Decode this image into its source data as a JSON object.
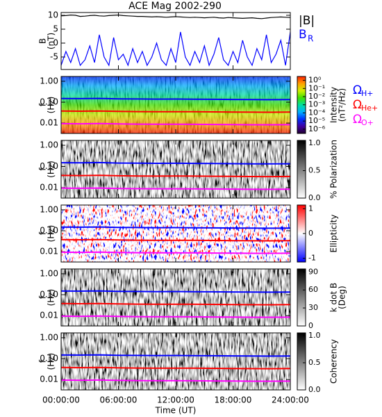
{
  "chart_data": [
    {
      "type": "line",
      "title": "ACE Mag 2002-290",
      "ylabel": [
        "B",
        "(nT)"
      ],
      "x": [
        0,
        0.5,
        1,
        1.5,
        2,
        2.5,
        3,
        3.5,
        4,
        4.5,
        5,
        5.5,
        6,
        6.5,
        7,
        7.5,
        8,
        8.5,
        9,
        9.5,
        10,
        10.5,
        11,
        11.5,
        12,
        12.5,
        13,
        13.5,
        14,
        14.5,
        15,
        15.5,
        16,
        16.5,
        17,
        17.5,
        18,
        18.5,
        19,
        19.5,
        20,
        20.5,
        21,
        21.5,
        22,
        22.5,
        23,
        23.5,
        24
      ],
      "xlim": [
        0,
        24
      ],
      "ylim": [
        -9.5,
        11
      ],
      "yticks": [
        10,
        5,
        0,
        -5
      ],
      "series": [
        {
          "name": "|B|",
          "color": "#000000",
          "values": [
            9.8,
            9.9,
            10.1,
            10.0,
            9.6,
            9.7,
            9.9,
            10.0,
            9.8,
            9.7,
            9.9,
            10.0,
            10.1,
            9.9,
            9.8,
            9.7,
            9.6,
            9.6,
            9.5,
            9.4,
            9.5,
            9.4,
            9.3,
            9.4,
            9.5,
            9.4,
            9.3,
            9.2,
            9.3,
            9.2,
            9.1,
            9.2,
            9.3,
            9.1,
            9.0,
            9.2,
            9.1,
            9.0,
            8.9,
            9.0,
            9.1,
            8.9,
            8.8,
            9.0,
            9.2,
            9.3,
            9.4,
            9.3,
            9.2
          ]
        },
        {
          "name": "B",
          "subscript": "R",
          "color": "#0000ff",
          "values": [
            -8,
            -3,
            -7,
            -2,
            -8,
            -6,
            -1,
            -7,
            3,
            -5,
            -8,
            2,
            -6,
            -4,
            -8,
            -2,
            -7,
            -3,
            -8,
            -5,
            0,
            -6,
            -8,
            -2,
            -7,
            4,
            -5,
            -8,
            -3,
            -7,
            -1,
            -8,
            -4,
            2,
            -6,
            -8,
            -3,
            -7,
            1,
            -5,
            -8,
            -2,
            -6,
            3,
            -7,
            -4,
            1,
            -8,
            4
          ]
        }
      ]
    },
    {
      "type": "spectrogram",
      "ylabel": [
        "f",
        "(Hz)"
      ],
      "log_y": true,
      "x": [
        0,
        2,
        4,
        6,
        8,
        10,
        12,
        14,
        16,
        18,
        20,
        22,
        24
      ],
      "xlim": [
        0,
        24
      ],
      "ylim": [
        0.0032,
        1.7
      ],
      "yticks": [
        {
          "value": 1,
          "label": "1.00"
        },
        {
          "value": 0.1,
          "label": "0.10"
        },
        {
          "value": 0.01,
          "label": "0.01"
        }
      ],
      "colorbar": {
        "label": [
          "Intensity",
          "(nT²/Hz)"
        ],
        "log": true,
        "lim": [
          3e-07,
          3
        ],
        "ticks": [
          {
            "value": 1,
            "label": "10⁰"
          },
          {
            "value": 0.1,
            "label": "10⁻¹"
          },
          {
            "value": 0.01,
            "label": "10⁻²"
          },
          {
            "value": 0.001,
            "label": "10⁻³"
          },
          {
            "value": 0.0001,
            "label": "10⁻⁴"
          },
          {
            "value": 1e-05,
            "label": "10⁻⁵"
          },
          {
            "value": 1e-06,
            "label": "10⁻⁶"
          }
        ],
        "colormap": [
          "#200030",
          "#4000a0",
          "#0030ff",
          "#00b0ff",
          "#00e0a0",
          "#40e000",
          "#d0f000",
          "#ffa000",
          "#ff2000"
        ]
      },
      "series": [
        {
          "name": "Ω",
          "subscript": "H+",
          "color": "#0000ff",
          "values": [
            0.15,
            0.148,
            0.152,
            0.145,
            0.142,
            0.14,
            0.141,
            0.139,
            0.137,
            0.135,
            0.133,
            0.132,
            0.134
          ]
        },
        {
          "name": "Ω",
          "subscript": "He+",
          "color": "#ff0000",
          "values": [
            0.0375,
            0.037,
            0.038,
            0.0363,
            0.0355,
            0.035,
            0.0352,
            0.0348,
            0.0343,
            0.0338,
            0.0333,
            0.033,
            0.0335
          ]
        },
        {
          "name": "Ω",
          "subscript": "O+",
          "color": "#ff00ff",
          "values": [
            0.0094,
            0.0093,
            0.0095,
            0.0091,
            0.0089,
            0.0088,
            0.0088,
            0.0087,
            0.0086,
            0.0085,
            0.0083,
            0.0083,
            0.0084
          ]
        }
      ]
    },
    {
      "type": "spectrogram",
      "ylabel": [
        "f",
        "(Hz)"
      ],
      "log_y": true,
      "x": [
        0,
        2,
        4,
        6,
        8,
        10,
        12,
        14,
        16,
        18,
        20,
        22,
        24
      ],
      "xlim": [
        0,
        24
      ],
      "ylim": [
        0.0032,
        1.7
      ],
      "yticks": [
        {
          "value": 1,
          "label": "1.00"
        },
        {
          "value": 0.1,
          "label": "0.10"
        },
        {
          "value": 0.01,
          "label": "0.01"
        }
      ],
      "colorbar": {
        "label": [
          "% Polarization"
        ],
        "lim": [
          0,
          1.05
        ],
        "ticks": [
          {
            "value": 1,
            "label": "1.0"
          },
          {
            "value": 0.5,
            "label": "0.5"
          },
          {
            "value": 0,
            "label": "0.0"
          }
        ],
        "colormap": [
          "#ffffff",
          "#000000"
        ]
      },
      "series": [
        {
          "color": "#0000ff",
          "values": [
            0.15,
            0.148,
            0.152,
            0.145,
            0.142,
            0.14,
            0.141,
            0.139,
            0.137,
            0.135,
            0.133,
            0.132,
            0.134
          ]
        },
        {
          "color": "#ff0000",
          "values": [
            0.0375,
            0.037,
            0.038,
            0.0363,
            0.0355,
            0.035,
            0.0352,
            0.0348,
            0.0343,
            0.0338,
            0.0333,
            0.033,
            0.0335
          ]
        },
        {
          "color": "#ff00ff",
          "values": [
            0.0094,
            0.0093,
            0.0095,
            0.0091,
            0.0089,
            0.0088,
            0.0088,
            0.0087,
            0.0086,
            0.0085,
            0.0083,
            0.0083,
            0.0084
          ]
        }
      ]
    },
    {
      "type": "spectrogram",
      "ylabel": [
        "f",
        "(Hz)"
      ],
      "log_y": true,
      "x": [
        0,
        2,
        4,
        6,
        8,
        10,
        12,
        14,
        16,
        18,
        20,
        22,
        24
      ],
      "xlim": [
        0,
        24
      ],
      "ylim": [
        0.0032,
        1.7
      ],
      "yticks": [
        {
          "value": 1,
          "label": "1.00"
        },
        {
          "value": 0.1,
          "label": "0.10"
        },
        {
          "value": 0.01,
          "label": "0.01"
        }
      ],
      "colorbar": {
        "label": [
          "Ellipticity"
        ],
        "lim": [
          -1.15,
          1.15
        ],
        "ticks": [
          1,
          0,
          -1
        ],
        "colormap": [
          "#0000ff",
          "#ffffff",
          "#ff0000"
        ]
      },
      "series": [
        {
          "color": "#0000ff",
          "values": [
            0.15,
            0.148,
            0.152,
            0.145,
            0.142,
            0.14,
            0.141,
            0.139,
            0.137,
            0.135,
            0.133,
            0.132,
            0.134
          ]
        },
        {
          "color": "#ff0000",
          "values": [
            0.0375,
            0.037,
            0.038,
            0.0363,
            0.0355,
            0.035,
            0.0352,
            0.0348,
            0.0343,
            0.0338,
            0.0333,
            0.033,
            0.0335
          ]
        },
        {
          "color": "#ff00ff",
          "values": [
            0.0094,
            0.0093,
            0.0095,
            0.0091,
            0.0089,
            0.0088,
            0.0088,
            0.0087,
            0.0086,
            0.0085,
            0.0083,
            0.0083,
            0.0084
          ]
        }
      ]
    },
    {
      "type": "spectrogram",
      "ylabel": [
        "f",
        "(Hz)"
      ],
      "log_y": true,
      "x": [
        0,
        2,
        4,
        6,
        8,
        10,
        12,
        14,
        16,
        18,
        20,
        22,
        24
      ],
      "xlim": [
        0,
        24
      ],
      "ylim": [
        0.0032,
        1.7
      ],
      "yticks": [
        {
          "value": 1,
          "label": "1.00"
        },
        {
          "value": 0.1,
          "label": "0.10"
        },
        {
          "value": 0.01,
          "label": "0.01"
        }
      ],
      "colorbar": {
        "label": [
          "k dot B",
          "(Deg)"
        ],
        "lim": [
          0,
          95
        ],
        "ticks": [
          90,
          60,
          30,
          0
        ],
        "colormap": [
          "#ffffff",
          "#000000"
        ]
      },
      "series": [
        {
          "color": "#0000ff",
          "values": [
            0.15,
            0.148,
            0.152,
            0.145,
            0.142,
            0.14,
            0.141,
            0.139,
            0.137,
            0.135,
            0.133,
            0.132,
            0.134
          ]
        },
        {
          "color": "#ff0000",
          "values": [
            0.0375,
            0.037,
            0.038,
            0.0363,
            0.0355,
            0.035,
            0.0352,
            0.0348,
            0.0343,
            0.0338,
            0.0333,
            0.033,
            0.0335
          ]
        },
        {
          "color": "#ff00ff",
          "values": [
            0.0094,
            0.0093,
            0.0095,
            0.0091,
            0.0089,
            0.0088,
            0.0088,
            0.0087,
            0.0086,
            0.0085,
            0.0083,
            0.0083,
            0.0084
          ]
        }
      ]
    },
    {
      "type": "spectrogram",
      "ylabel": [
        "f",
        "(Hz)"
      ],
      "log_y": true,
      "x": [
        0,
        2,
        4,
        6,
        8,
        10,
        12,
        14,
        16,
        18,
        20,
        22,
        24
      ],
      "xlim": [
        0,
        24
      ],
      "ylim": [
        0.0032,
        1.7
      ],
      "yticks": [
        {
          "value": 1,
          "label": "1.00"
        },
        {
          "value": 0.1,
          "label": "0.10"
        },
        {
          "value": 0.01,
          "label": "0.01"
        }
      ],
      "xticks": [
        {
          "value": 0,
          "label": "00:00:00"
        },
        {
          "value": 6,
          "label": "06:00:00"
        },
        {
          "value": 12,
          "label": "12:00:00"
        },
        {
          "value": 18,
          "label": "18:00:00"
        },
        {
          "value": 24,
          "label": "24:00:00"
        }
      ],
      "xlabel": "Time (UT)",
      "colorbar": {
        "label": [
          "Coherency"
        ],
        "lim": [
          0,
          1.05
        ],
        "ticks": [
          {
            "value": 1,
            "label": "1.0"
          },
          {
            "value": 0.5,
            "label": "0.5"
          },
          {
            "value": 0,
            "label": "0.0"
          }
        ],
        "colormap": [
          "#ffffff",
          "#000000"
        ]
      },
      "series": [
        {
          "color": "#0000ff",
          "values": [
            0.15,
            0.148,
            0.152,
            0.145,
            0.142,
            0.14,
            0.141,
            0.139,
            0.137,
            0.135,
            0.133,
            0.132,
            0.134
          ]
        },
        {
          "color": "#ff0000",
          "values": [
            0.0375,
            0.037,
            0.038,
            0.0363,
            0.0355,
            0.035,
            0.0352,
            0.0348,
            0.0343,
            0.0338,
            0.0333,
            0.033,
            0.0335
          ]
        },
        {
          "color": "#ff00ff",
          "values": [
            0.0094,
            0.0093,
            0.0095,
            0.0091,
            0.0089,
            0.0088,
            0.0088,
            0.0087,
            0.0086,
            0.0085,
            0.0083,
            0.0083,
            0.0084
          ]
        }
      ]
    }
  ]
}
